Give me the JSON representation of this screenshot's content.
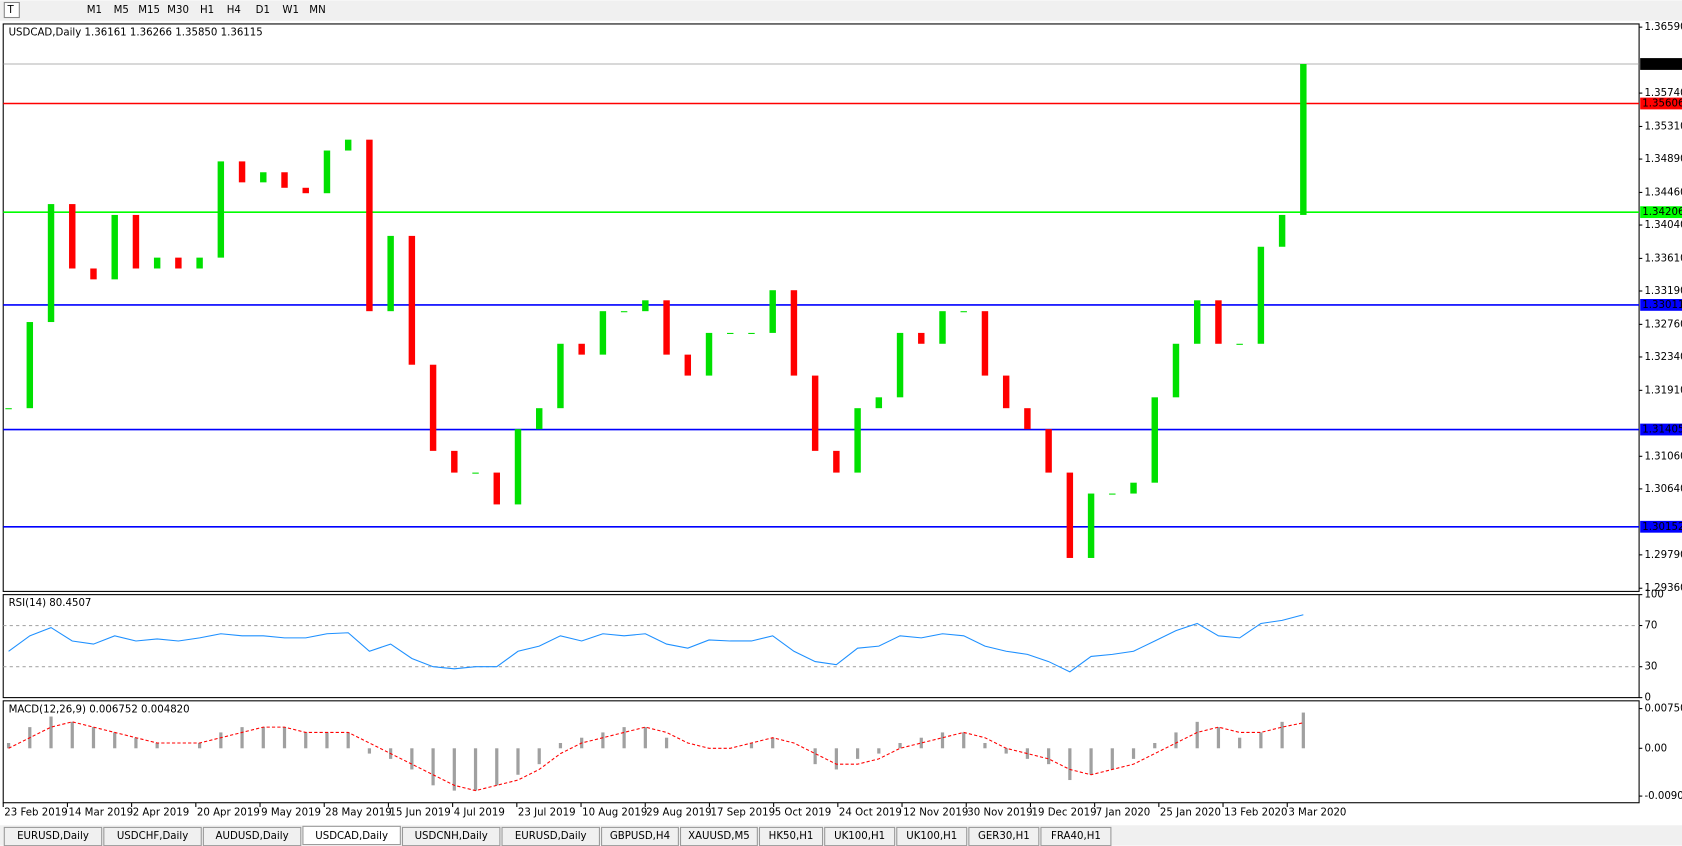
{
  "toolbar": {
    "timeframes": [
      "M1",
      "M5",
      "M15",
      "M30",
      "H1",
      "H4",
      "D1",
      "W1",
      "MN"
    ]
  },
  "chart_data": {
    "type": "candlestick",
    "header": "USDCAD,Daily  1.36161 1.36266 1.35850 1.36115",
    "up_color": "#00e000",
    "down_color": "#ff0000",
    "closes": [
      1.3168,
      1.3279,
      1.3431,
      1.3348,
      1.3334,
      1.3417,
      1.3348,
      1.3362,
      1.3348,
      1.3362,
      1.3486,
      1.3459,
      1.3472,
      1.3452,
      1.3445,
      1.35,
      1.3514,
      1.3293,
      1.339,
      1.3224,
      1.3113,
      1.3085,
      1.3085,
      1.3044,
      1.3141,
      1.3168,
      1.3251,
      1.3237,
      1.3293,
      1.3293,
      1.3307,
      1.3237,
      1.321,
      1.3265,
      1.3265,
      1.3265,
      1.332,
      1.321,
      1.3113,
      1.3085,
      1.3168,
      1.3182,
      1.3265,
      1.3251,
      1.3293,
      1.3293,
      1.321,
      1.3168,
      1.3141,
      1.3085,
      1.2975,
      1.3058,
      1.3058,
      1.3072,
      1.3182,
      1.3251,
      1.3307,
      1.3251,
      1.3251,
      1.3376,
      1.3417,
      1.36115
    ],
    "ylim": [
      1.29319,
      1.36631
    ],
    "yticks": [
      {
        "value": 1.3659,
        "label": "1.36590"
      },
      {
        "value": 1.3574,
        "label": "1.35740"
      },
      {
        "value": 1.3531,
        "label": "1.35310"
      },
      {
        "value": 1.3489,
        "label": "1.34890"
      },
      {
        "value": 1.3446,
        "label": "1.34460"
      },
      {
        "value": 1.3404,
        "label": "1.34040"
      },
      {
        "value": 1.3361,
        "label": "1.33610"
      },
      {
        "value": 1.3319,
        "label": "1.33190"
      },
      {
        "value": 1.3276,
        "label": "1.32760"
      },
      {
        "value": 1.3234,
        "label": "1.32340"
      },
      {
        "value": 1.3191,
        "label": "1.31910"
      },
      {
        "value": 1.3106,
        "label": "1.31060"
      },
      {
        "value": 1.3064,
        "label": "1.30640"
      },
      {
        "value": 1.2979,
        "label": "1.29790"
      },
      {
        "value": 1.2936,
        "label": "1.29360"
      }
    ],
    "levels": [
      {
        "value": 1.35606,
        "color": "#ff0000"
      },
      {
        "value": 1.34206,
        "color": "#00ff00"
      },
      {
        "value": 1.33011,
        "color": "#0000ff"
      },
      {
        "value": 1.31405,
        "color": "#0000ff"
      },
      {
        "value": 1.30152,
        "color": "#0000ff"
      }
    ],
    "current_price": {
      "value": 1.36115,
      "color": "#000000"
    },
    "date_labels": [
      "23 Feb 2019",
      "14 Mar 2019",
      "2 Apr 2019",
      "20 Apr 2019",
      "9 May 2019",
      "28 May 2019",
      "15 Jun 2019",
      "4 Jul 2019",
      "23 Jul 2019",
      "10 Aug 2019",
      "29 Aug 2019",
      "17 Sep 2019",
      "5 Oct 2019",
      "24 Oct 2019",
      "12 Nov 2019",
      "30 Nov 2019",
      "19 Dec 2019",
      "7 Jan 2020",
      "25 Jan 2020",
      "13 Feb 2020",
      "3 Mar 2020"
    ],
    "rsi": {
      "label": "RSI(14) 80.4507",
      "color": "#1e90ff",
      "values": [
        45,
        60,
        68,
        55,
        52,
        60,
        55,
        57,
        55,
        58,
        62,
        60,
        60,
        58,
        58,
        62,
        63,
        45,
        52,
        38,
        30,
        28,
        30,
        30,
        45,
        50,
        60,
        55,
        62,
        60,
        62,
        52,
        48,
        56,
        55,
        55,
        60,
        45,
        35,
        32,
        48,
        50,
        60,
        58,
        62,
        60,
        50,
        45,
        42,
        35,
        25,
        40,
        42,
        45,
        55,
        65,
        72,
        60,
        58,
        72,
        75,
        80.4507
      ],
      "ylim": [
        0,
        100
      ],
      "yticks": [
        100,
        70,
        30,
        0
      ],
      "levels": [
        70,
        30
      ]
    },
    "macd": {
      "label": "MACD(12,26,9) 0.006752 0.004820",
      "signal_color": "#ff0000",
      "histogram_color": "#a0a0a0",
      "histogram": [
        0.001,
        0.004,
        0.006,
        0.005,
        0.004,
        0.003,
        0.002,
        0.001,
        0,
        0.001,
        0.003,
        0.004,
        0.004,
        0.004,
        0.003,
        0.003,
        0.003,
        -0.001,
        -0.002,
        -0.004,
        -0.007,
        -0.008,
        -0.008,
        -0.007,
        -0.005,
        -0.003,
        0.001,
        0.002,
        0.003,
        0.004,
        0.004,
        0.002,
        0,
        0,
        0,
        0.001,
        0.002,
        0,
        -0.003,
        -0.004,
        -0.002,
        -0.001,
        0.001,
        0.002,
        0.003,
        0.003,
        0.001,
        -0.001,
        -0.002,
        -0.003,
        -0.006,
        -0.005,
        -0.004,
        -0.002,
        0.001,
        0.003,
        0.005,
        0.004,
        0.002,
        0.003,
        0.005,
        0.006752
      ],
      "signal": [
        0,
        0.002,
        0.004,
        0.005,
        0.004,
        0.003,
        0.002,
        0.001,
        0.001,
        0.001,
        0.002,
        0.003,
        0.004,
        0.004,
        0.003,
        0.003,
        0.003,
        0.001,
        -0.001,
        -0.003,
        -0.005,
        -0.007,
        -0.008,
        -0.007,
        -0.006,
        -0.004,
        -0.001,
        0.001,
        0.002,
        0.003,
        0.004,
        0.003,
        0.001,
        0,
        0,
        0.001,
        0.002,
        0.001,
        -0.001,
        -0.003,
        -0.003,
        -0.002,
        0,
        0.001,
        0.002,
        0.003,
        0.002,
        0,
        -0.001,
        -0.002,
        -0.004,
        -0.005,
        -0.004,
        -0.003,
        -0.001,
        0.001,
        0.003,
        0.004,
        0.003,
        0.003,
        0.004,
        0.00482
      ],
      "ylim": [
        -0.01029,
        0.00897
      ],
      "yticks": [
        0.007503,
        {
          "value": 0,
          "label": "0.00"
        },
        -0.009033
      ]
    }
  },
  "tabs": {
    "items": [
      "EURUSD,Daily",
      "USDCHF,Daily",
      "AUDUSD,Daily",
      "USDCAD,Daily",
      "USDCNH,Daily",
      "EURUSD,Daily",
      "GBPUSD,H4",
      "XAUUSD,M5",
      "HK50,H1",
      "UK100,H1",
      "UK100,H1",
      "GER30,H1",
      "FRA40,H1"
    ],
    "active": 3
  }
}
